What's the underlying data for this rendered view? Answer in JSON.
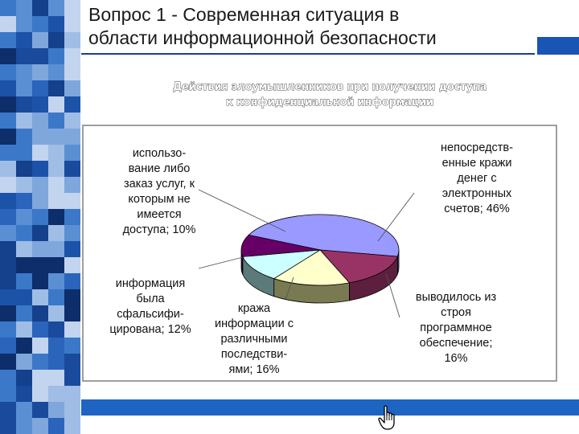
{
  "slide": {
    "title_line1": "Вопрос 1 - Современная ситуация в",
    "title_line2": "области информационной безопасности"
  },
  "chart_data": {
    "type": "pie",
    "title": [
      "Действия злоумышленников при получении доступа",
      "к конфиденциальной информации"
    ],
    "slices": [
      {
        "label": [
          "непосредств-",
          "енные кражи",
          "денег с",
          "электронных",
          "счетов; 46%"
        ],
        "value": 46,
        "color": "#9999ff",
        "side_color": "#4a4a8f"
      },
      {
        "label": [
          "выводилось из",
          "строя",
          "программное",
          "обеспечение;",
          "16%"
        ],
        "value": 16,
        "color": "#993366",
        "side_color": "#5c1f3d"
      },
      {
        "label": [
          "кража",
          "информации с",
          "различными",
          "последстви-",
          "ями; 16%"
        ],
        "value": 16,
        "color": "#ffffcc",
        "side_color": "#7a7a52"
      },
      {
        "label": [
          "информация",
          "была",
          "сфальсифи-",
          "цирована; 12%"
        ],
        "value": 12,
        "color": "#ccffff",
        "side_color": "#5c7a7a"
      },
      {
        "label": [
          "использо-",
          "вание либо",
          "заказ услуг, к",
          "которым не",
          "имеется",
          "доступа; 10%"
        ],
        "value": 10,
        "color": "#660066",
        "side_color": "#330033"
      }
    ]
  },
  "colors": {
    "accent": "#1e64c2",
    "rule": "#1a3f8f"
  },
  "icons": {
    "cursor": "hand-pointer-icon"
  }
}
